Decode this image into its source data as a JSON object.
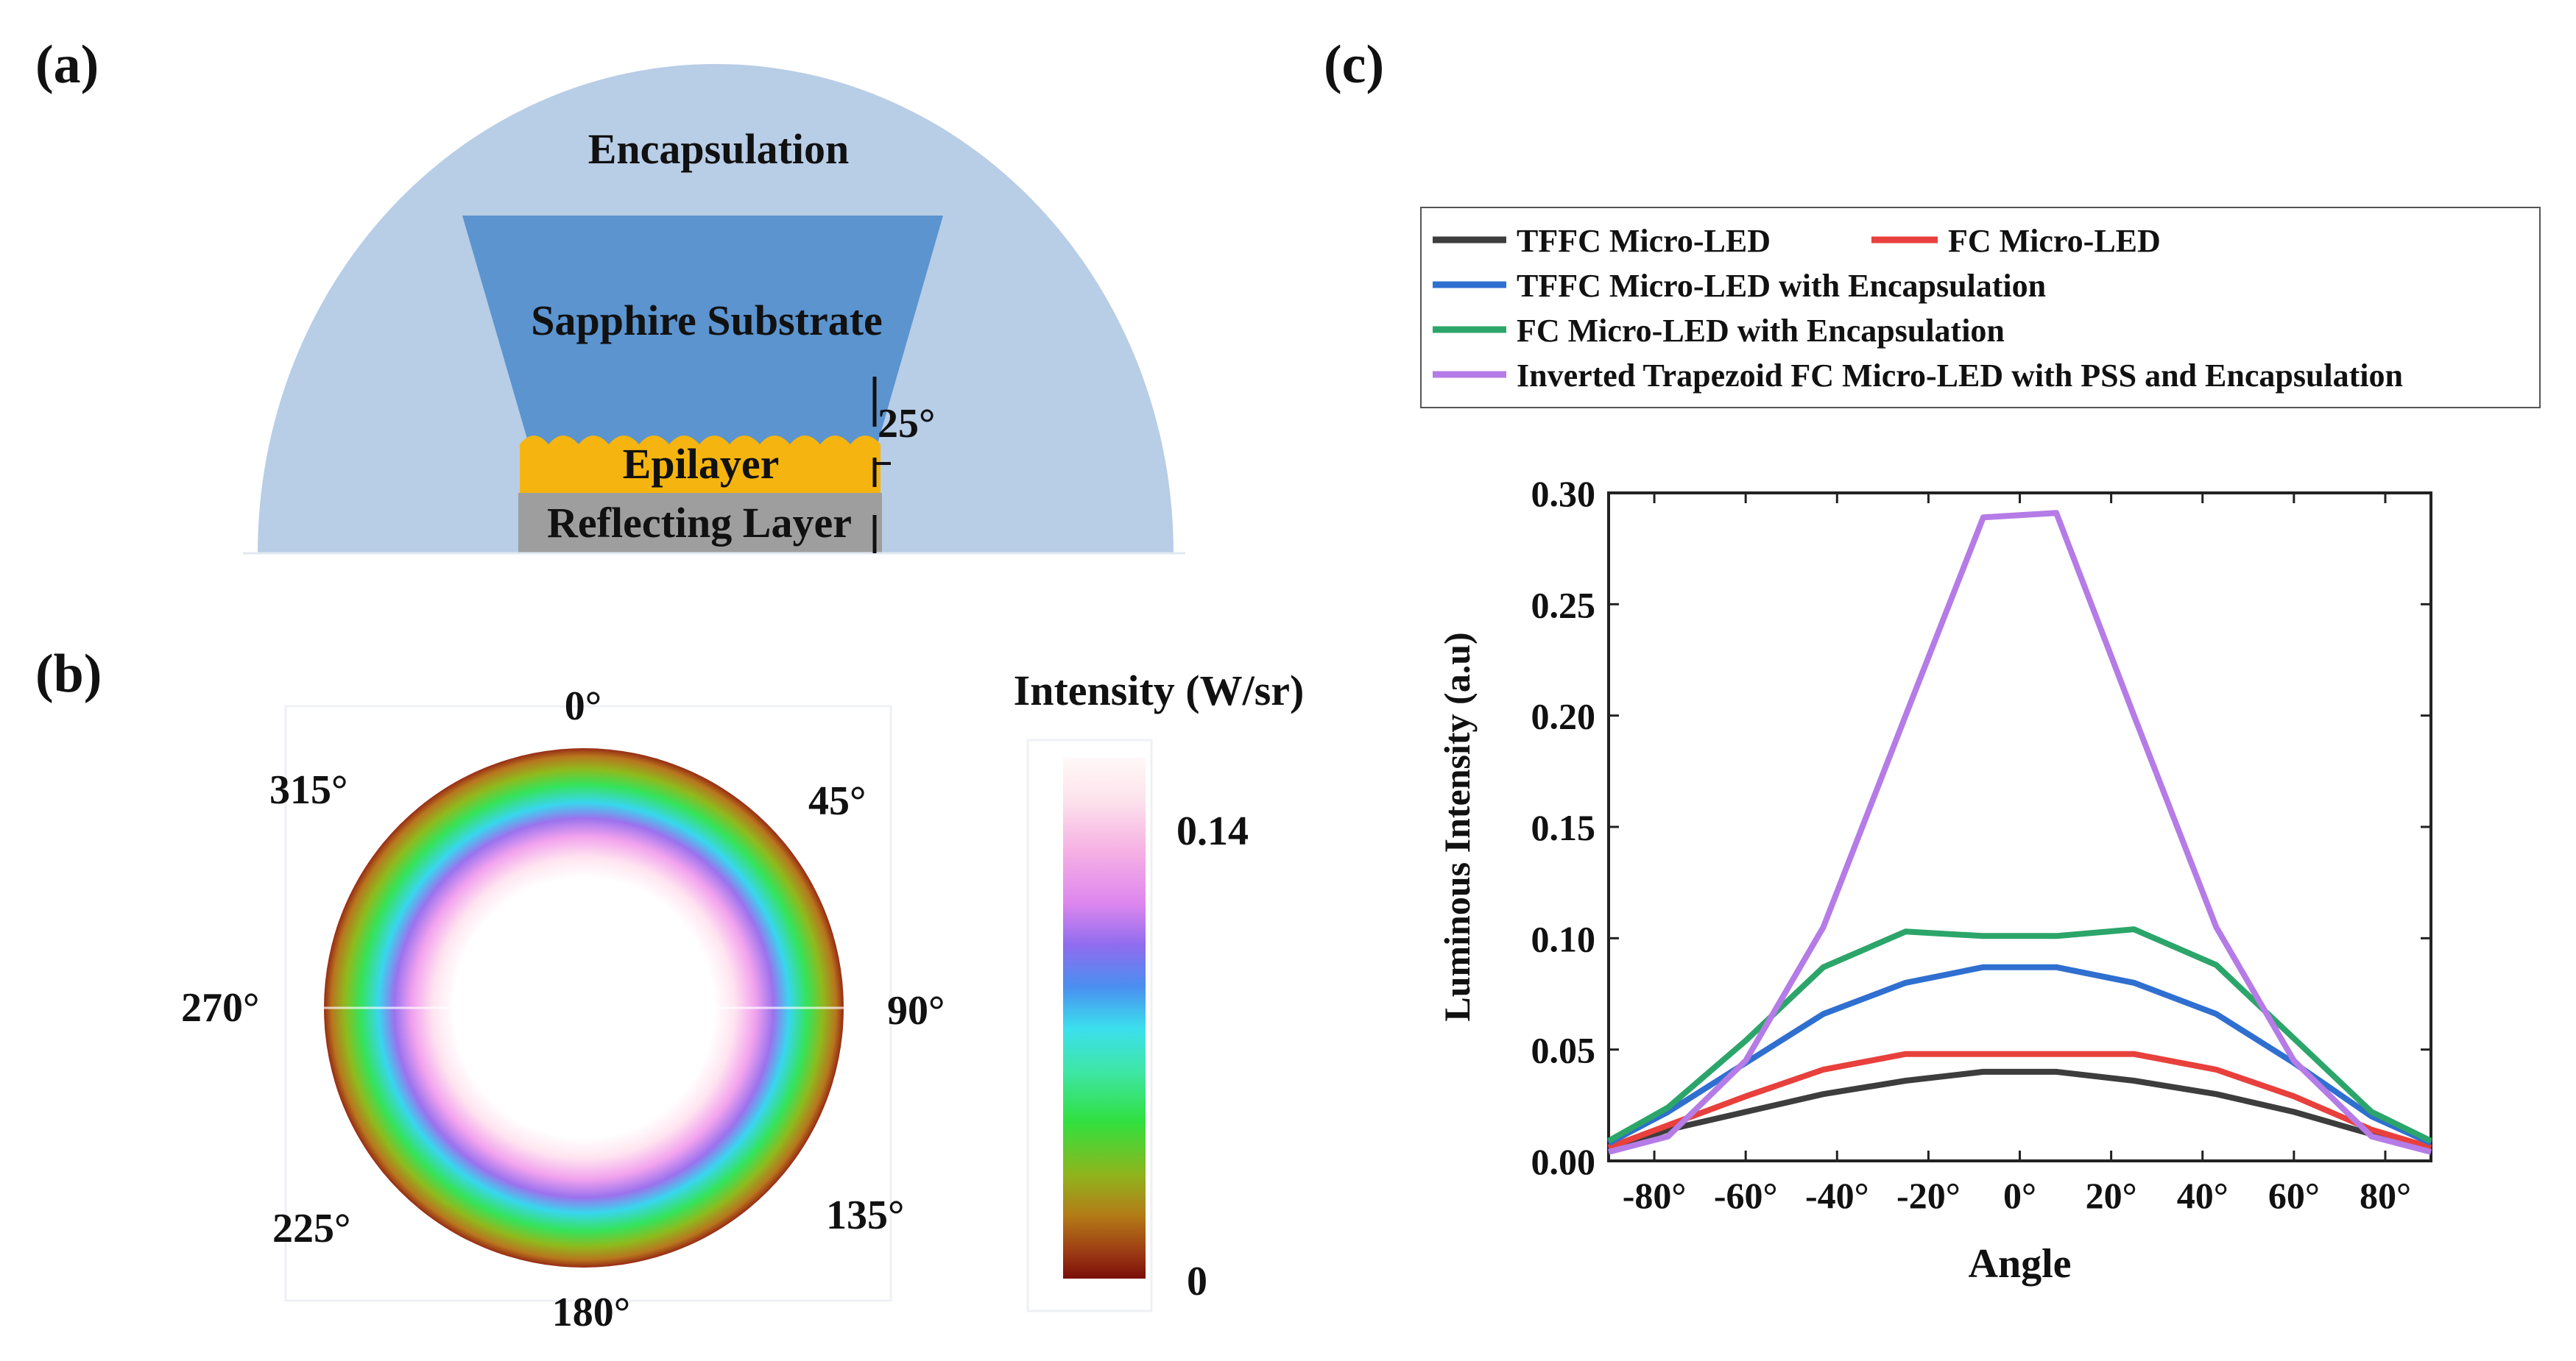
{
  "panel_a": {
    "label": "(a)",
    "encapsulation": "Encapsulation",
    "substrate": "Sapphire Substrate",
    "angle": "25°",
    "epilayer": "Epilayer",
    "reflecting": "Reflecting Layer",
    "colors": {
      "encapsulation": "#b8cde6",
      "substrate": "#5b94cf",
      "epilayer": "#f5b40f",
      "reflecting": "#9e9e9e"
    }
  },
  "panel_b": {
    "label": "(b)",
    "angles": [
      "0°",
      "45°",
      "90°",
      "135°",
      "180°",
      "225°",
      "270°",
      "315°"
    ],
    "colorbar_title": "Intensity (W/sr)",
    "colorbar_max": "0.14",
    "colorbar_min": "0"
  },
  "panel_c": {
    "label": "(c)"
  },
  "chart_data": {
    "type": "line",
    "title": "",
    "xlabel": "Angle",
    "ylabel": "Luminous Intensity (a.u)",
    "xlim": [
      -90,
      90
    ],
    "ylim": [
      0,
      0.3
    ],
    "x_ticks": [
      -80,
      -60,
      -40,
      -20,
      0,
      20,
      40,
      60,
      80
    ],
    "x_tick_labels": [
      "-80°",
      "-60°",
      "-40°",
      "-20°",
      "0°",
      "20°",
      "40°",
      "60°",
      "80°"
    ],
    "y_ticks": [
      0.0,
      0.05,
      0.1,
      0.15,
      0.2,
      0.25,
      0.3
    ],
    "y_tick_labels": [
      "0.00",
      "0.05",
      "0.10",
      "0.15",
      "0.20",
      "0.25",
      "0.30"
    ],
    "x": [
      -90,
      -77,
      -60,
      -43,
      -25,
      -8,
      8,
      25,
      43,
      60,
      77,
      90
    ],
    "series": [
      {
        "name": "TFFC Micro-LED",
        "color": "#3d3d3d",
        "values": [
          0.005,
          0.014,
          0.022,
          0.03,
          0.036,
          0.04,
          0.04,
          0.036,
          0.03,
          0.022,
          0.012,
          0.005
        ]
      },
      {
        "name": "FC Micro-LED",
        "color": "#e8403c",
        "values": [
          0.006,
          0.016,
          0.029,
          0.041,
          0.048,
          0.048,
          0.048,
          0.048,
          0.041,
          0.029,
          0.014,
          0.006
        ]
      },
      {
        "name": "TFFC Micro-LED with Encapsulation",
        "color": "#2f6fd0",
        "values": [
          0.008,
          0.022,
          0.044,
          0.066,
          0.08,
          0.087,
          0.087,
          0.08,
          0.066,
          0.044,
          0.02,
          0.008
        ]
      },
      {
        "name": "FC Micro-LED with Encapsulation",
        "color": "#2ca56a",
        "values": [
          0.009,
          0.024,
          0.054,
          0.087,
          0.103,
          0.101,
          0.101,
          0.104,
          0.088,
          0.055,
          0.022,
          0.009
        ]
      },
      {
        "name": "Inverted Trapezoid FC Micro-LED with PSS and Encapsulation",
        "color": "#b57be6",
        "values": [
          0.004,
          0.011,
          0.045,
          0.105,
          0.2,
          0.289,
          0.291,
          0.2,
          0.105,
          0.045,
          0.011,
          0.004
        ]
      }
    ],
    "legend_position": "top"
  }
}
